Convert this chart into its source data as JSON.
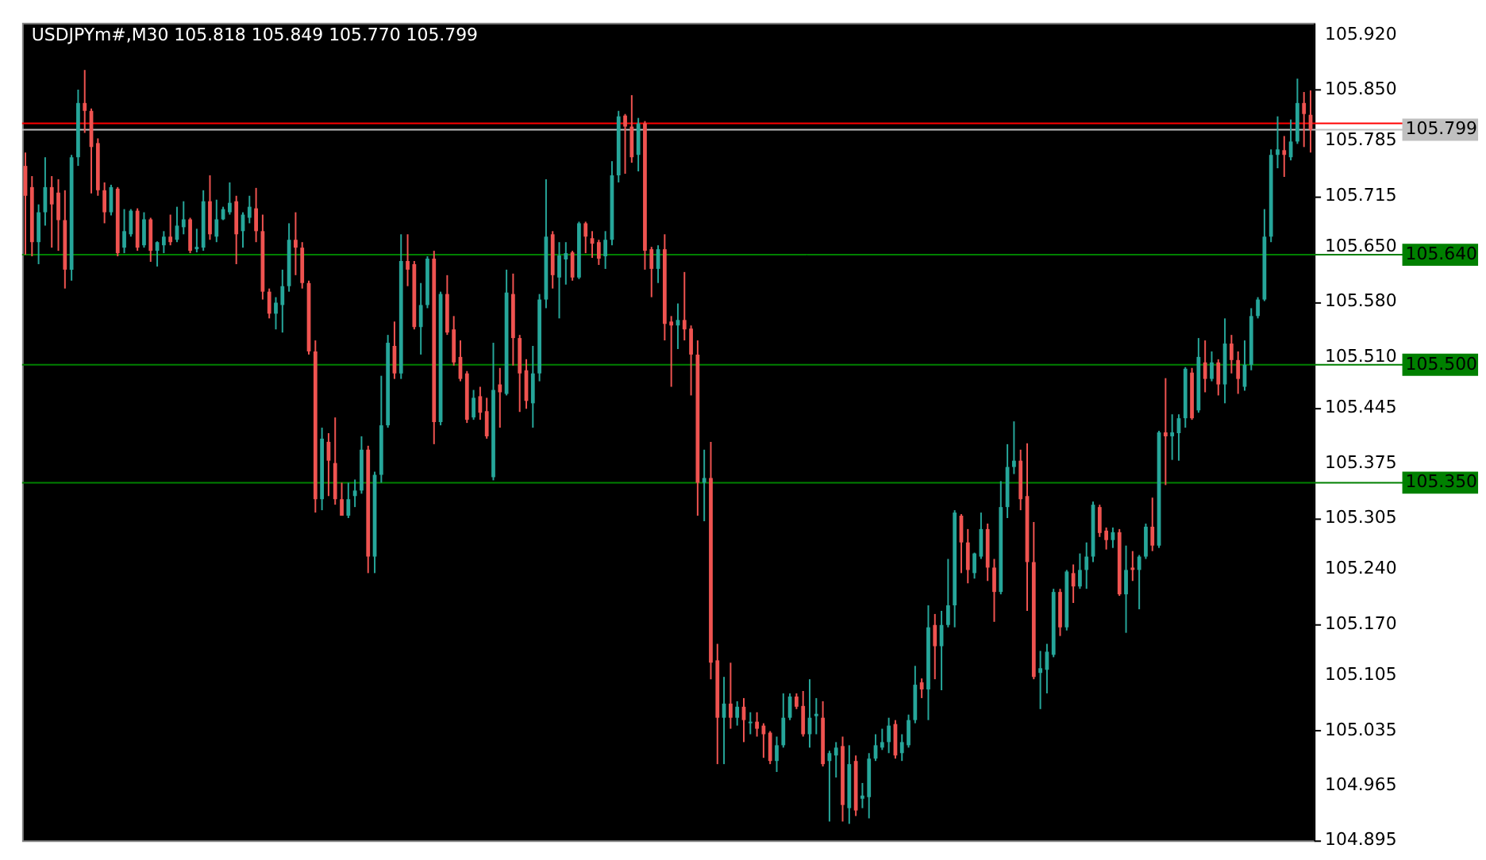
{
  "chart_data": {
    "type": "candlestick",
    "title": "USDJPYm#,M30  105.818 105.849 105.770 105.799",
    "categories": [
      null,
      null,
      null,
      null,
      null,
      null,
      null,
      null,
      null,
      null,
      null,
      null,
      null,
      null,
      null,
      null,
      null,
      null,
      null,
      null,
      null,
      null,
      null,
      null,
      null,
      null,
      null,
      null,
      null,
      null,
      null,
      null,
      null,
      null,
      null,
      null,
      null,
      null,
      null,
      null,
      null,
      null,
      null,
      null,
      null,
      null,
      null,
      null,
      null,
      null,
      null,
      null,
      null,
      null,
      null,
      null,
      null,
      null,
      null,
      null,
      null,
      null,
      null,
      null,
      null,
      null,
      null,
      null,
      null,
      null,
      null,
      null,
      null,
      null,
      null,
      null,
      null,
      null,
      null,
      null,
      null,
      null,
      null,
      null,
      null,
      null,
      null,
      null,
      null,
      null,
      null,
      null,
      null,
      null,
      null,
      null,
      null,
      null,
      null,
      null,
      null,
      null,
      null,
      null,
      null,
      null,
      null,
      null,
      null,
      null,
      null,
      null,
      null,
      null,
      null,
      null,
      null,
      null,
      null,
      null,
      null,
      null,
      null,
      null,
      null,
      null,
      null,
      null,
      null,
      null,
      null,
      null,
      null,
      null,
      null,
      null,
      null,
      null,
      null,
      null,
      null,
      null,
      null,
      null,
      null,
      null,
      null,
      null,
      null,
      null,
      null,
      null,
      null,
      null,
      null,
      null,
      null,
      null,
      null,
      null,
      null,
      null,
      null,
      null,
      null,
      null,
      null,
      null,
      null,
      null,
      null,
      null,
      null,
      null,
      null,
      null,
      null,
      null,
      null,
      null,
      null,
      null,
      null,
      null,
      null,
      null,
      null,
      null,
      null,
      null,
      null,
      null,
      null,
      null,
      null,
      null
    ],
    "ohlc": [
      [
        105.753,
        105.77,
        105.64,
        105.715
      ],
      [
        105.726,
        105.74,
        105.638,
        105.656
      ],
      [
        105.656,
        105.704,
        105.628,
        105.694
      ],
      [
        105.694,
        105.764,
        105.677,
        105.726
      ],
      [
        105.726,
        105.74,
        105.649,
        105.704
      ],
      [
        105.719,
        105.736,
        105.645,
        105.684
      ],
      [
        105.684,
        105.722,
        105.597,
        105.621
      ],
      [
        105.621,
        105.767,
        105.607,
        105.764
      ],
      [
        105.764,
        105.85,
        105.753,
        105.833
      ],
      [
        105.833,
        105.875,
        105.795,
        105.823
      ],
      [
        105.823,
        105.826,
        105.718,
        105.777
      ],
      [
        105.782,
        105.788,
        105.715,
        105.722
      ],
      [
        105.722,
        105.732,
        105.68,
        105.694
      ],
      [
        105.694,
        105.729,
        105.69,
        105.726
      ],
      [
        105.724,
        105.726,
        105.638,
        105.642
      ],
      [
        105.649,
        105.698,
        105.642,
        105.67
      ],
      [
        105.666,
        105.698,
        105.663,
        105.696
      ],
      [
        105.696,
        105.699,
        105.645,
        105.649
      ],
      [
        105.652,
        105.694,
        105.649,
        105.685
      ],
      [
        105.685,
        105.687,
        105.631,
        105.645
      ],
      [
        105.645,
        105.657,
        105.625,
        105.656
      ],
      [
        105.652,
        105.67,
        105.642,
        105.663
      ],
      [
        105.663,
        105.691,
        105.652,
        105.656
      ],
      [
        105.659,
        105.701,
        105.656,
        105.677
      ],
      [
        105.675,
        105.708,
        105.666,
        105.685
      ],
      [
        105.685,
        105.687,
        105.642,
        105.645
      ],
      [
        105.647,
        105.673,
        105.643,
        105.65
      ],
      [
        105.649,
        105.722,
        105.645,
        105.708
      ],
      [
        105.708,
        105.741,
        105.659,
        105.666
      ],
      [
        105.663,
        105.71,
        105.656,
        105.685
      ],
      [
        105.685,
        105.701,
        105.684,
        105.698
      ],
      [
        105.694,
        105.732,
        105.691,
        105.706
      ],
      [
        105.708,
        105.715,
        105.628,
        105.666
      ],
      [
        105.67,
        105.694,
        105.649,
        105.691
      ],
      [
        105.687,
        105.715,
        105.68,
        105.701
      ],
      [
        105.699,
        105.725,
        105.656,
        105.67
      ],
      [
        105.67,
        105.691,
        105.583,
        105.593
      ],
      [
        105.593,
        105.597,
        105.559,
        105.565
      ],
      [
        105.565,
        105.586,
        105.545,
        105.579
      ],
      [
        105.576,
        105.621,
        105.541,
        105.6
      ],
      [
        105.6,
        105.68,
        105.593,
        105.659
      ],
      [
        105.659,
        105.694,
        105.614,
        105.649
      ],
      [
        105.649,
        105.656,
        105.597,
        105.604
      ],
      [
        105.604,
        105.607,
        105.513,
        105.517
      ],
      [
        105.517,
        105.531,
        105.312,
        105.329
      ],
      [
        105.329,
        105.42,
        105.315,
        105.406
      ],
      [
        105.402,
        105.413,
        105.333,
        105.378
      ],
      [
        105.375,
        105.433,
        105.322,
        105.329
      ],
      [
        105.329,
        105.35,
        105.308,
        105.308
      ],
      [
        105.308,
        105.35,
        105.305,
        105.329
      ],
      [
        105.333,
        105.354,
        105.319,
        105.34
      ],
      [
        105.34,
        105.409,
        105.336,
        105.392
      ],
      [
        105.392,
        105.397,
        105.235,
        105.256
      ],
      [
        105.256,
        105.364,
        105.235,
        105.36
      ],
      [
        105.36,
        105.486,
        105.35,
        105.423
      ],
      [
        105.423,
        105.538,
        105.42,
        105.528
      ],
      [
        105.524,
        105.555,
        105.482,
        105.489
      ],
      [
        105.489,
        105.666,
        105.482,
        105.632
      ],
      [
        105.632,
        105.666,
        105.6,
        105.621
      ],
      [
        105.628,
        105.632,
        105.545,
        105.548
      ],
      [
        105.548,
        105.604,
        105.513,
        105.576
      ],
      [
        105.576,
        105.638,
        105.572,
        105.635
      ],
      [
        105.635,
        105.645,
        105.399,
        105.427
      ],
      [
        105.427,
        105.593,
        105.423,
        105.59
      ],
      [
        105.59,
        105.614,
        105.538,
        105.541
      ],
      [
        105.545,
        105.562,
        105.499,
        105.503
      ],
      [
        105.51,
        105.531,
        105.479,
        105.482
      ],
      [
        105.489,
        105.492,
        105.426,
        105.43
      ],
      [
        105.433,
        105.468,
        105.43,
        105.458
      ],
      [
        105.46,
        105.472,
        105.43,
        105.439
      ],
      [
        105.441,
        105.458,
        105.406,
        105.409
      ],
      [
        105.357,
        105.528,
        105.353,
        105.468
      ],
      [
        105.475,
        105.496,
        105.42,
        105.465
      ],
      [
        105.463,
        105.621,
        105.461,
        105.592
      ],
      [
        105.59,
        105.616,
        105.499,
        105.534
      ],
      [
        105.534,
        105.538,
        105.44,
        105.489
      ],
      [
        105.493,
        105.507,
        105.444,
        105.454
      ],
      [
        105.451,
        105.524,
        105.42,
        105.489
      ],
      [
        105.489,
        105.59,
        105.479,
        105.583
      ],
      [
        105.583,
        105.736,
        105.572,
        105.663
      ],
      [
        105.666,
        105.67,
        105.597,
        105.614
      ],
      [
        105.611,
        105.656,
        105.559,
        105.639
      ],
      [
        105.634,
        105.656,
        105.602,
        105.642
      ],
      [
        105.643,
        105.645,
        105.607,
        105.611
      ],
      [
        105.611,
        105.682,
        105.609,
        105.68
      ],
      [
        105.68,
        105.682,
        105.642,
        105.663
      ],
      [
        105.661,
        105.67,
        105.636,
        105.654
      ],
      [
        105.656,
        105.659,
        105.627,
        105.635
      ],
      [
        105.638,
        105.67,
        105.622,
        105.659
      ],
      [
        105.659,
        105.759,
        105.652,
        105.741
      ],
      [
        105.741,
        105.823,
        105.732,
        105.816
      ],
      [
        105.817,
        105.819,
        105.743,
        105.803
      ],
      [
        105.803,
        105.843,
        105.757,
        105.764
      ],
      [
        105.767,
        105.814,
        105.746,
        105.807
      ],
      [
        105.807,
        105.81,
        105.621,
        105.645
      ],
      [
        105.647,
        105.65,
        105.586,
        105.622
      ],
      [
        105.622,
        105.652,
        105.604,
        105.647
      ],
      [
        105.647,
        105.666,
        105.531,
        105.552
      ],
      [
        105.555,
        105.562,
        105.472,
        105.55
      ],
      [
        105.55,
        105.578,
        105.52,
        105.557
      ],
      [
        105.557,
        105.618,
        105.531,
        105.545
      ],
      [
        105.546,
        105.55,
        105.461,
        105.513
      ],
      [
        105.513,
        105.531,
        105.308,
        105.35
      ],
      [
        105.35,
        105.392,
        105.301,
        105.356
      ],
      [
        105.356,
        105.402,
        105.1,
        105.121
      ],
      [
        105.124,
        105.145,
        104.992,
        105.051
      ],
      [
        105.051,
        105.103,
        104.992,
        105.069
      ],
      [
        105.069,
        105.121,
        105.037,
        105.051
      ],
      [
        105.051,
        105.072,
        105.041,
        105.065
      ],
      [
        105.065,
        105.076,
        105.02,
        105.048
      ],
      [
        105.044,
        105.058,
        105.03,
        105.046
      ],
      [
        105.046,
        105.058,
        105.027,
        105.037
      ],
      [
        105.041,
        105.044,
        105.0,
        105.03
      ],
      [
        105.032,
        105.034,
        104.992,
        104.996
      ],
      [
        104.996,
        105.027,
        104.982,
        105.016
      ],
      [
        105.016,
        105.082,
        105.013,
        105.051
      ],
      [
        105.051,
        105.082,
        105.048,
        105.078
      ],
      [
        105.078,
        105.082,
        105.062,
        105.065
      ],
      [
        105.066,
        105.085,
        105.027,
        105.03
      ],
      [
        105.03,
        105.1,
        105.013,
        105.051
      ],
      [
        105.053,
        105.076,
        105.03,
        105.056
      ],
      [
        105.051,
        105.072,
        104.989,
        104.992
      ],
      [
        104.996,
        105.009,
        104.919,
        105.006
      ],
      [
        105.003,
        105.02,
        104.975,
        105.013
      ],
      [
        105.015,
        105.027,
        104.919,
        104.94
      ],
      [
        104.936,
        105.016,
        104.916,
        104.992
      ],
      [
        104.996,
        105.003,
        104.926,
        104.933
      ],
      [
        104.948,
        104.968,
        104.936,
        104.952
      ],
      [
        104.95,
        105.006,
        104.923,
        104.999
      ],
      [
        104.999,
        105.03,
        104.996,
        105.016
      ],
      [
        105.013,
        105.037,
        105.01,
        105.02
      ],
      [
        105.02,
        105.051,
        105.006,
        105.041
      ],
      [
        105.043,
        105.048,
        104.999,
        105.003
      ],
      [
        105.006,
        105.03,
        104.996,
        105.02
      ],
      [
        105.016,
        105.055,
        105.013,
        105.048
      ],
      [
        105.048,
        105.117,
        105.044,
        105.093
      ],
      [
        105.096,
        105.101,
        105.076,
        105.087
      ],
      [
        105.087,
        105.194,
        105.048,
        105.166
      ],
      [
        105.169,
        105.183,
        105.1,
        105.142
      ],
      [
        105.142,
        105.187,
        105.086,
        105.169
      ],
      [
        105.169,
        105.253,
        105.166,
        105.194
      ],
      [
        105.194,
        105.315,
        105.166,
        105.312
      ],
      [
        105.308,
        105.31,
        105.235,
        105.274
      ],
      [
        105.274,
        105.291,
        105.222,
        105.239
      ],
      [
        105.235,
        105.261,
        105.228,
        105.26
      ],
      [
        105.256,
        105.312,
        105.253,
        105.291
      ],
      [
        105.291,
        105.298,
        105.225,
        105.242
      ],
      [
        105.242,
        105.253,
        105.173,
        105.211
      ],
      [
        105.211,
        105.352,
        105.208,
        105.319
      ],
      [
        105.319,
        105.399,
        105.305,
        105.37
      ],
      [
        105.37,
        105.428,
        105.361,
        105.378
      ],
      [
        105.378,
        105.392,
        105.315,
        105.329
      ],
      [
        105.333,
        105.4,
        105.187,
        105.249
      ],
      [
        105.249,
        105.3,
        105.1,
        105.103
      ],
      [
        105.108,
        105.136,
        105.062,
        105.114
      ],
      [
        105.112,
        105.145,
        105.082,
        105.135
      ],
      [
        105.131,
        105.215,
        105.128,
        105.211
      ],
      [
        105.211,
        105.215,
        105.155,
        105.166
      ],
      [
        105.166,
        105.239,
        105.162,
        105.237
      ],
      [
        105.235,
        105.246,
        105.197,
        105.218
      ],
      [
        105.218,
        105.26,
        105.215,
        105.239
      ],
      [
        105.239,
        105.274,
        105.215,
        105.256
      ],
      [
        105.256,
        105.326,
        105.249,
        105.322
      ],
      [
        105.319,
        105.322,
        105.281,
        105.286
      ],
      [
        105.289,
        105.293,
        105.265,
        105.277
      ],
      [
        105.277,
        105.293,
        105.267,
        105.287
      ],
      [
        105.287,
        105.291,
        105.206,
        105.208
      ],
      [
        105.208,
        105.27,
        105.159,
        105.239
      ],
      [
        105.242,
        105.263,
        105.225,
        105.239
      ],
      [
        105.239,
        105.258,
        105.189,
        105.256
      ],
      [
        105.256,
        105.298,
        105.253,
        105.294
      ],
      [
        105.294,
        105.331,
        105.263,
        105.27
      ],
      [
        105.27,
        105.416,
        105.267,
        105.414
      ],
      [
        105.414,
        105.483,
        105.347,
        105.409
      ],
      [
        105.409,
        105.437,
        105.379,
        105.414
      ],
      [
        105.413,
        105.437,
        105.378,
        105.432
      ],
      [
        105.432,
        105.497,
        105.42,
        105.495
      ],
      [
        105.49,
        105.496,
        105.43,
        105.432
      ],
      [
        105.442,
        105.534,
        105.439,
        105.51
      ],
      [
        105.503,
        105.531,
        105.465,
        105.482
      ],
      [
        105.482,
        105.517,
        105.479,
        105.503
      ],
      [
        105.503,
        105.507,
        105.461,
        105.475
      ],
      [
        105.475,
        105.559,
        105.451,
        105.527
      ],
      [
        105.527,
        105.538,
        105.489,
        105.506
      ],
      [
        105.506,
        105.517,
        105.463,
        105.482
      ],
      [
        105.472,
        105.531,
        105.467,
        105.5
      ],
      [
        105.5,
        105.572,
        105.493,
        105.562
      ],
      [
        105.562,
        105.586,
        105.559,
        105.583
      ],
      [
        105.583,
        105.698,
        105.581,
        105.663
      ],
      [
        105.663,
        105.774,
        105.656,
        105.767
      ],
      [
        105.767,
        105.816,
        105.75,
        105.774
      ],
      [
        105.773,
        105.791,
        105.739,
        105.767
      ],
      [
        105.764,
        105.812,
        105.76,
        105.784
      ],
      [
        105.784,
        105.864,
        105.781,
        105.833
      ],
      [
        105.833,
        105.847,
        105.777,
        105.819
      ],
      [
        105.818,
        105.849,
        105.77,
        105.799
      ]
    ],
    "colors": [
      "#ef5350",
      "#ef5350",
      "#26a69a",
      "#26a69a",
      "#ef5350",
      "#ef5350",
      "#ef5350",
      "#26a69a",
      "#26a69a",
      "#ef5350",
      "#ef5350",
      "#ef5350",
      "#ef5350",
      "#26a69a",
      "#ef5350",
      "#26a69a",
      "#26a69a",
      "#ef5350",
      "#26a69a",
      "#ef5350",
      "#26a69a",
      "#26a69a",
      "#ef5350",
      "#26a69a",
      "#26a69a",
      "#ef5350",
      "#26a69a",
      "#26a69a",
      "#ef5350",
      "#26a69a",
      "#26a69a",
      "#26a69a",
      "#ef5350",
      "#26a69a",
      "#26a69a",
      "#ef5350",
      "#ef5350",
      "#ef5350",
      "#26a69a",
      "#26a69a",
      "#26a69a",
      "#ef5350",
      "#ef5350",
      "#ef5350",
      "#ef5350",
      "#26a69a",
      "#ef5350",
      "#ef5350",
      "#ef5350",
      "#26a69a",
      "#26a69a",
      "#26a69a",
      "#ef5350",
      "#26a69a",
      "#26a69a",
      "#26a69a",
      "#ef5350",
      "#26a69a",
      "#ef5350",
      "#ef5350",
      "#26a69a",
      "#26a69a",
      "#ef5350",
      "#26a69a",
      "#ef5350",
      "#ef5350",
      "#ef5350",
      "#ef5350",
      "#26a69a",
      "#ef5350",
      "#ef5350",
      "#26a69a",
      "#ef5350",
      "#26a69a",
      "#ef5350",
      "#ef5350",
      "#ef5350",
      "#26a69a",
      "#26a69a",
      "#26a69a",
      "#ef5350",
      "#26a69a",
      "#26a69a",
      "#ef5350",
      "#26a69a",
      "#ef5350",
      "#ef5350",
      "#ef5350",
      "#26a69a",
      "#26a69a",
      "#26a69a",
      "#ef5350",
      "#ef5350",
      "#26a69a",
      "#ef5350",
      "#ef5350",
      "#26a69a",
      "#ef5350",
      "#ef5350",
      "#26a69a",
      "#ef5350",
      "#ef5350",
      "#ef5350",
      "#26a69a",
      "#ef5350",
      "#ef5350",
      "#26a69a",
      "#ef5350",
      "#26a69a",
      "#ef5350",
      "#26a69a",
      "#ef5350",
      "#ef5350",
      "#ef5350",
      "#26a69a",
      "#26a69a",
      "#26a69a",
      "#ef5350",
      "#ef5350",
      "#26a69a",
      "#26a69a",
      "#ef5350",
      "#26a69a",
      "#26a69a",
      "#ef5350",
      "#26a69a",
      "#ef5350",
      "#26a69a",
      "#26a69a",
      "#26a69a",
      "#26a69a",
      "#26a69a",
      "#ef5350",
      "#26a69a",
      "#26a69a",
      "#26a69a",
      "#ef5350",
      "#26a69a",
      "#ef5350",
      "#26a69a",
      "#26a69a",
      "#26a69a",
      "#ef5350",
      "#ef5350",
      "#26a69a",
      "#26a69a",
      "#ef5350",
      "#ef5350",
      "#26a69a",
      "#26a69a",
      "#26a69a",
      "#ef5350",
      "#ef5350",
      "#ef5350",
      "#26a69a",
      "#26a69a",
      "#26a69a",
      "#ef5350",
      "#26a69a",
      "#ef5350",
      "#26a69a",
      "#26a69a",
      "#26a69a",
      "#ef5350",
      "#ef5350",
      "#26a69a",
      "#ef5350",
      "#26a69a",
      "#ef5350",
      "#26a69a",
      "#26a69a",
      "#ef5350",
      "#26a69a",
      "#ef5350",
      "#26a69a",
      "#26a69a",
      "#26a69a",
      "#ef5350",
      "#26a69a",
      "#ef5350",
      "#26a69a",
      "#ef5350",
      "#26a69a",
      "#ef5350",
      "#ef5350",
      "#26a69a",
      "#26a69a",
      "#26a69a",
      "#26a69a",
      "#26a69a",
      "#26a69a",
      "#ef5350",
      "#26a69a",
      "#26a69a",
      "#ef5350",
      "#ef5350"
    ],
    "ylim": [
      104.895,
      105.935
    ],
    "yticks": [
      {
        "value": 105.92,
        "label": "105.920"
      },
      {
        "value": 105.85,
        "label": "105.850"
      },
      105.785,
      105.715,
      {
        "value": 105.65,
        "label": "105.650"
      },
      {
        "value": 105.58,
        "label": "105.580"
      },
      {
        "value": 105.51,
        "label": "105.510"
      },
      105.445,
      105.375,
      105.305,
      {
        "value": 105.24,
        "label": "105.240"
      },
      {
        "value": 105.17,
        "label": "105.170"
      },
      105.105,
      105.035,
      104.965,
      104.895
    ],
    "tick_labels": "y",
    "grid": false,
    "ref_lines": [
      {
        "axis": "y",
        "value": 105.807,
        "label": null,
        "color": "#ff0000"
      },
      {
        "axis": "y",
        "value": 105.799,
        "label": "105.799",
        "color": "#c0c0c0"
      },
      {
        "axis": "y",
        "value": 105.64,
        "label": "105.640",
        "color": "#008000"
      },
      {
        "axis": "y",
        "value": 105.5,
        "label": "105.500",
        "color": "#008000"
      },
      {
        "axis": "y",
        "value": 105.35,
        "label": "105.350",
        "color": "#008000"
      }
    ]
  }
}
